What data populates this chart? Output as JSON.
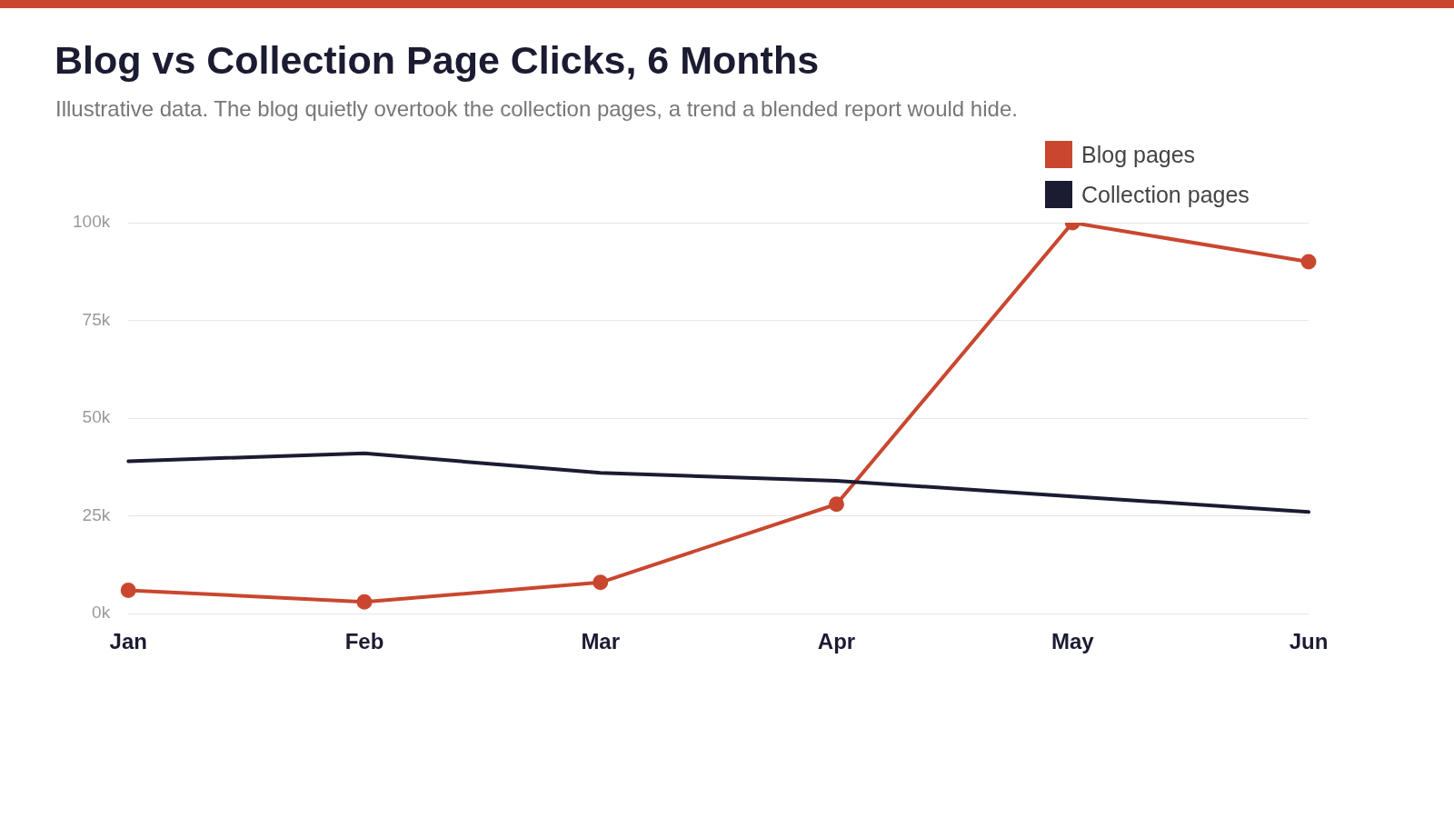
{
  "chart_data": {
    "type": "line",
    "title": "Blog vs Collection Page Clicks, 6 Months",
    "subtitle": "Illustrative data. The blog quietly overtook the collection pages, a trend a blended report would hide.",
    "categories": [
      "Jan",
      "Feb",
      "Mar",
      "Apr",
      "May",
      "Jun"
    ],
    "series": [
      {
        "name": "Blog pages",
        "color": "#c9472f",
        "marker": "circle",
        "values": [
          6000,
          3000,
          8000,
          28000,
          100000,
          90000
        ]
      },
      {
        "name": "Collection pages",
        "color": "#1b1b32",
        "marker": "none",
        "values": [
          39000,
          41000,
          36000,
          34000,
          30000,
          26000
        ]
      }
    ],
    "ylim": [
      0,
      100000
    ],
    "yticks": [
      {
        "value": 0,
        "label": "0k"
      },
      {
        "value": 25000,
        "label": "25k"
      },
      {
        "value": 50000,
        "label": "50k"
      },
      {
        "value": 75000,
        "label": "75k"
      },
      {
        "value": 100000,
        "label": "100k"
      }
    ],
    "grid": "y",
    "legend": "top right",
    "line_style": "solid"
  }
}
